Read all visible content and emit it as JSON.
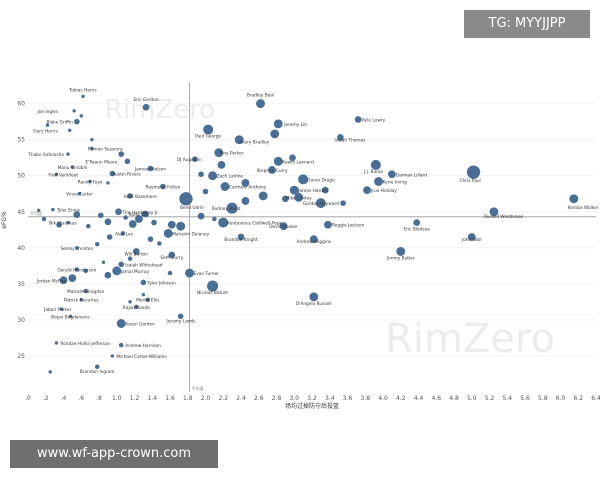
{
  "watermark_tag": "TG: MYYJJPP",
  "watermark_url": "www.wf-app-crown.com",
  "bg_watermark": "RimZero",
  "chart_data": {
    "type": "scatter",
    "xlabel": "场均过掉防守后投篮",
    "ylabel": "eFG%",
    "xlim": [
      0,
      6.4
    ],
    "ylim": [
      20,
      63
    ],
    "x_ticks": [
      0,
      0.2,
      0.4,
      0.6,
      0.8,
      1.0,
      1.2,
      1.4,
      1.6,
      1.8,
      2.0,
      2.2,
      2.4,
      2.6,
      2.8,
      3.0,
      3.2,
      3.4,
      3.6,
      3.8,
      4.0,
      4.2,
      4.4,
      4.6,
      4.8,
      5.0,
      5.2,
      5.4,
      5.6,
      5.8,
      6.0,
      6.2,
      6.4
    ],
    "x_tick_labels": [
      ".0",
      ".2",
      ".4",
      ".6",
      ".8",
      "1.0",
      "1.2",
      "1.4",
      "1.6",
      "1.8",
      "2.0",
      "2.2",
      "2.4",
      "2.6",
      "2.8",
      "3.0",
      "3.2",
      "3.4",
      "3.6",
      "3.8",
      "4.0",
      "4.2",
      "4.4",
      "4.6",
      "4.8",
      "5.0",
      "5.2",
      "5.4",
      "5.6",
      "5.8",
      "6.0",
      "6.2",
      "6.4"
    ],
    "y_ticks": [
      25,
      30,
      35,
      40,
      45,
      50,
      55,
      60
    ],
    "y_tick_labels": [
      "25",
      "30",
      "35",
      "40",
      "45",
      "50",
      "55",
      "60"
    ],
    "ref_x": 1.82,
    "ref_y": 44.3,
    "ref_label": "平均值",
    "colors": {
      "point": "#4a6f96",
      "ref": "#999999",
      "grid": "#ececec",
      "label": "#333333",
      "bg_watermark": "#ececec"
    },
    "points": [
      {
        "name": "Tobias Harris",
        "x": 0.62,
        "y": 61.0,
        "s": 2
      },
      {
        "name": "Bradley Beal",
        "x": 2.62,
        "y": 60.0,
        "s": 7
      },
      {
        "name": "Eric Gordon",
        "x": 1.33,
        "y": 59.5,
        "s": 5
      },
      {
        "name": "Joe Ingles",
        "x": 0.52,
        "y": 59.0,
        "s": 2
      },
      {
        "name": "Blake Griffin",
        "x": 0.55,
        "y": 57.5,
        "s": 4
      },
      {
        "name": "Jeremy Lin",
        "x": 2.82,
        "y": 57.2,
        "s": 7
      },
      {
        "name": "Kyle Lowry",
        "x": 3.72,
        "y": 57.8,
        "s": 5
      },
      {
        "name": "Gary Harris",
        "x": 0.47,
        "y": 56.3,
        "s": 2
      },
      {
        "name": "Paul George",
        "x": 2.03,
        "y": 56.4,
        "s": 8
      },
      {
        "name": "Avery Bradley",
        "x": 2.38,
        "y": 55.0,
        "s": 7
      },
      {
        "name": "Isaiah Thomas",
        "x": 3.52,
        "y": 55.3,
        "s": 5
      },
      {
        "name": "Ramon Sessions",
        "x": 0.72,
        "y": 53.8,
        "s": 2
      },
      {
        "name": "Thabo Sefolosha",
        "x": 0.45,
        "y": 53.0,
        "s": 2
      },
      {
        "name": "Tony Parker",
        "x": 2.15,
        "y": 53.2,
        "s": 7
      },
      {
        "name": "DJ Augustin",
        "x": 1.88,
        "y": 52.3,
        "s": 4
      },
      {
        "name": "E'Twaun Moore",
        "x": 1.12,
        "y": 52.0,
        "s": 4
      },
      {
        "name": "Kawhi Leonard",
        "x": 2.82,
        "y": 52.0,
        "s": 7
      },
      {
        "name": "Manu Ginobili",
        "x": 0.5,
        "y": 51.2,
        "s": 2
      },
      {
        "name": "Jameer Nelson",
        "x": 1.38,
        "y": 51.0,
        "s": 4
      },
      {
        "name": "Stephen Curry",
        "x": 2.75,
        "y": 50.8,
        "s": 6
      },
      {
        "name": "Fred VanVleet",
        "x": 0.32,
        "y": 50.2,
        "s": 2
      },
      {
        "name": "Austin Rivers",
        "x": 0.95,
        "y": 50.3,
        "s": 4
      },
      {
        "name": "Zach LaVine",
        "x": 2.08,
        "y": 50.0,
        "s": 7
      },
      {
        "name": "J.J. Barea",
        "x": 3.92,
        "y": 51.5,
        "s": 8
      },
      {
        "name": "Damian Lillard",
        "x": 4.1,
        "y": 50.2,
        "s": 6
      },
      {
        "name": "Chris Paul",
        "x": 5.02,
        "y": 50.5,
        "s": 11
      },
      {
        "name": "Randy Foye",
        "x": 0.7,
        "y": 49.2,
        "s": 2
      },
      {
        "name": "Goran Dragic",
        "x": 3.1,
        "y": 49.5,
        "s": 8
      },
      {
        "name": "Kyrie Irving",
        "x": 3.95,
        "y": 49.2,
        "s": 7
      },
      {
        "name": "Raymond Felton",
        "x": 1.52,
        "y": 48.5,
        "s": 4
      },
      {
        "name": "Carmelo Anthony",
        "x": 2.22,
        "y": 48.5,
        "s": 7
      },
      {
        "name": "Vince Carter",
        "x": 0.58,
        "y": 47.5,
        "s": 2
      },
      {
        "name": "James Harden",
        "x": 3.0,
        "y": 48.0,
        "s": 7
      },
      {
        "name": "Jrue Holiday",
        "x": 3.82,
        "y": 48.0,
        "s": 6
      },
      {
        "name": "Mike Conley",
        "x": 3.05,
        "y": 47.0,
        "s": 7
      },
      {
        "name": "Kent Bazemore",
        "x": 1.15,
        "y": 47.2,
        "s": 4
      },
      {
        "name": "Bend Udrih",
        "x": 1.78,
        "y": 46.8,
        "s": 11
      },
      {
        "name": "Kemba Walker",
        "x": 6.15,
        "y": 46.8,
        "s": 7
      },
      {
        "name": "Gordon Hayward",
        "x": 3.3,
        "y": 46.2,
        "s": 8
      },
      {
        "name": "Tyler Ennis",
        "x": 0.28,
        "y": 45.3,
        "s": 2
      },
      {
        "name": "Tim Hardaway Jr.",
        "x": 1.02,
        "y": 45.0,
        "s": 5
      },
      {
        "name": "Rodney Hood",
        "x": 2.3,
        "y": 45.5,
        "s": 9
      },
      {
        "name": "Russell Westbrook",
        "x": 5.25,
        "y": 45.0,
        "s": 7
      },
      {
        "name": "Rudy Gay",
        "x": 1.25,
        "y": 44.0,
        "s": 6
      },
      {
        "name": "Kentavious Caldwell-Pope",
        "x": 2.2,
        "y": 43.5,
        "s": 8
      },
      {
        "name": "Nik Stauskas",
        "x": 0.45,
        "y": 43.5,
        "s": 2
      },
      {
        "name": "Devin Booker",
        "x": 2.88,
        "y": 43.0,
        "s": 6
      },
      {
        "name": "Reggie Jackson",
        "x": 3.38,
        "y": 43.2,
        "s": 6
      },
      {
        "name": "Eric Bledsoe",
        "x": 4.38,
        "y": 43.5,
        "s": 5
      },
      {
        "name": "Alex Len",
        "x": 1.07,
        "y": 42.0,
        "s": 3
      },
      {
        "name": "Malcolm Delaney",
        "x": 1.58,
        "y": 42.0,
        "s": 7
      },
      {
        "name": "Brandon Knight",
        "x": 2.4,
        "y": 41.5,
        "s": 5
      },
      {
        "name": "John Wall",
        "x": 5.0,
        "y": 41.5,
        "s": 6
      },
      {
        "name": "Andrew Wiggins",
        "x": 3.22,
        "y": 41.2,
        "s": 6
      },
      {
        "name": "Semaj Christon",
        "x": 0.55,
        "y": 40.0,
        "s": 2
      },
      {
        "name": "Will Barton",
        "x": 1.22,
        "y": 39.5,
        "s": 5
      },
      {
        "name": "Jimmy Butler",
        "x": 4.2,
        "y": 39.5,
        "s": 7
      },
      {
        "name": "Seth Curry",
        "x": 1.62,
        "y": 39.0,
        "s": 5
      },
      {
        "name": "Isaiah Whitehead",
        "x": 1.05,
        "y": 37.7,
        "s": 4
      },
      {
        "name": "Gerald Henderson",
        "x": 0.55,
        "y": 37.0,
        "s": 3
      },
      {
        "name": "Jamal Murray",
        "x": 1.0,
        "y": 36.8,
        "s": 7
      },
      {
        "name": "Evan Turner",
        "x": 1.82,
        "y": 36.5,
        "s": 7
      },
      {
        "name": "Jordan McRae",
        "x": 0.4,
        "y": 35.5,
        "s": 6
      },
      {
        "name": "Tyler Johnson",
        "x": 1.3,
        "y": 35.2,
        "s": 4
      },
      {
        "name": "Nicolas Batum",
        "x": 2.08,
        "y": 34.7,
        "s": 9
      },
      {
        "name": "Malcolm Brogdon",
        "x": 0.65,
        "y": 34.0,
        "s": 3
      },
      {
        "name": "Patrick Beverley",
        "x": 0.6,
        "y": 32.8,
        "s": 2
      },
      {
        "name": "Monta Ellis",
        "x": 1.35,
        "y": 32.8,
        "s": 3
      },
      {
        "name": "D'Angelo Russell",
        "x": 3.22,
        "y": 33.2,
        "s": 7
      },
      {
        "name": "Rajon Rondo",
        "x": 1.22,
        "y": 31.8,
        "s": 3
      },
      {
        "name": "Jabari Parker",
        "x": 0.38,
        "y": 31.5,
        "s": 2
      },
      {
        "name": "Bojan Bogdanovic",
        "x": 0.48,
        "y": 30.5,
        "s": 2
      },
      {
        "name": "Jeremy Lamb",
        "x": 1.72,
        "y": 30.5,
        "s": 4
      },
      {
        "name": "Aaron Gordon",
        "x": 1.05,
        "y": 29.5,
        "s": 7
      },
      {
        "name": "Rondae Hollis-Jefferson",
        "x": 0.32,
        "y": 26.8,
        "s": 2
      },
      {
        "name": "Andrew Harrison",
        "x": 1.05,
        "y": 26.5,
        "s": 3
      },
      {
        "name": "Michael Carter-Williams",
        "x": 0.95,
        "y": 25.0,
        "s": 2
      },
      {
        "name": "Brandon Ingram",
        "x": 0.78,
        "y": 23.5,
        "s": 3
      }
    ],
    "extra_points": [
      {
        "x": 0.12,
        "y": 45.2,
        "s": 2
      },
      {
        "x": 0.18,
        "y": 44.0,
        "s": 3
      },
      {
        "x": 0.35,
        "y": 43.2,
        "s": 4
      },
      {
        "x": 0.55,
        "y": 44.6,
        "s": 5
      },
      {
        "x": 0.68,
        "y": 43.0,
        "s": 3
      },
      {
        "x": 0.82,
        "y": 44.5,
        "s": 4
      },
      {
        "x": 0.9,
        "y": 43.6,
        "s": 5
      },
      {
        "x": 1.1,
        "y": 44.2,
        "s": 3
      },
      {
        "x": 1.18,
        "y": 43.3,
        "s": 6
      },
      {
        "x": 1.32,
        "y": 44.7,
        "s": 5
      },
      {
        "x": 1.42,
        "y": 43.5,
        "s": 4
      },
      {
        "x": 1.62,
        "y": 43.2,
        "s": 6
      },
      {
        "x": 1.72,
        "y": 43.0,
        "s": 7
      },
      {
        "x": 1.95,
        "y": 44.4,
        "s": 5
      },
      {
        "x": 2.1,
        "y": 44.0,
        "s": 3
      },
      {
        "x": 0.92,
        "y": 41.5,
        "s": 4
      },
      {
        "x": 1.38,
        "y": 41.2,
        "s": 4
      },
      {
        "x": 1.48,
        "y": 40.6,
        "s": 3
      },
      {
        "x": 0.78,
        "y": 40.5,
        "s": 3
      },
      {
        "x": 0.9,
        "y": 36.2,
        "s": 5
      },
      {
        "x": 0.5,
        "y": 35.8,
        "s": 6
      },
      {
        "x": 0.65,
        "y": 36.8,
        "s": 3
      },
      {
        "x": 0.85,
        "y": 38.0,
        "s": 2
      },
      {
        "x": 1.15,
        "y": 38.5,
        "s": 3
      },
      {
        "x": 1.3,
        "y": 33.5,
        "s": 2
      },
      {
        "x": 1.6,
        "y": 36.5,
        "s": 3
      },
      {
        "x": 0.72,
        "y": 55.0,
        "s": 2
      },
      {
        "x": 1.05,
        "y": 53.0,
        "s": 4
      },
      {
        "x": 0.9,
        "y": 49.0,
        "s": 2
      },
      {
        "x": 2.45,
        "y": 49.0,
        "s": 6
      },
      {
        "x": 2.65,
        "y": 47.2,
        "s": 7
      },
      {
        "x": 2.45,
        "y": 46.5,
        "s": 6
      },
      {
        "x": 2.9,
        "y": 46.8,
        "s": 5
      },
      {
        "x": 3.35,
        "y": 48.0,
        "s": 5
      },
      {
        "x": 3.55,
        "y": 46.2,
        "s": 4
      },
      {
        "x": 2.78,
        "y": 55.8,
        "s": 7
      },
      {
        "x": 2.98,
        "y": 52.5,
        "s": 5
      },
      {
        "x": 2.18,
        "y": 51.5,
        "s": 6
      },
      {
        "x": 0.22,
        "y": 57.0,
        "s": 2
      },
      {
        "x": 0.6,
        "y": 58.3,
        "s": 2
      },
      {
        "x": 2.0,
        "y": 47.8,
        "s": 4
      },
      {
        "x": 1.95,
        "y": 50.2,
        "s": 4
      },
      {
        "x": 0.25,
        "y": 22.8,
        "s": 2
      },
      {
        "x": 1.15,
        "y": 32.5,
        "s": 2
      }
    ]
  }
}
